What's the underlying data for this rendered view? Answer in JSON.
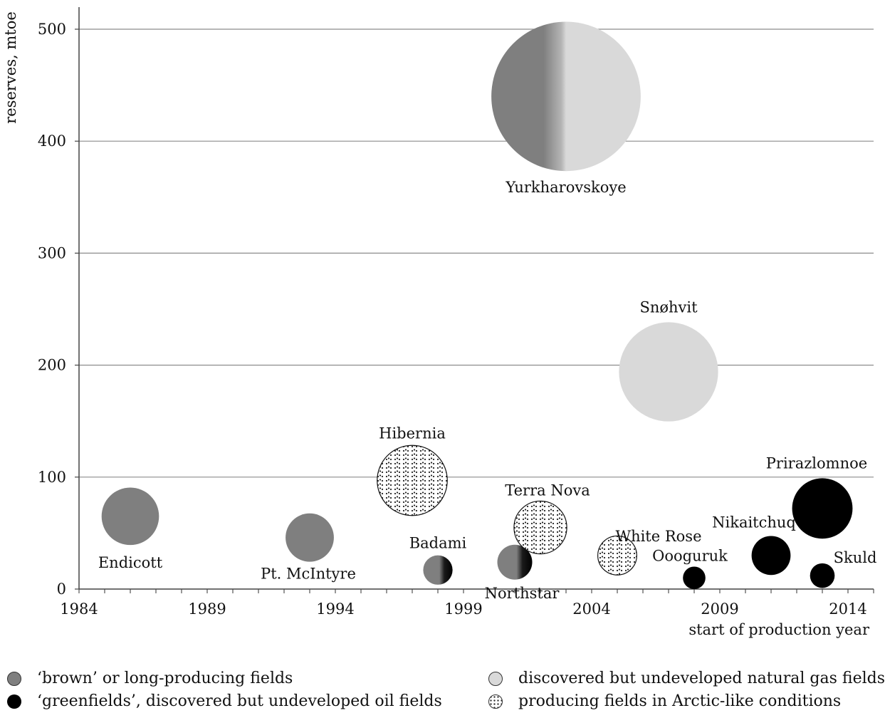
{
  "chart_data": {
    "type": "bubble",
    "ylabel": "reserves, mtoe",
    "xlabel": "start of production year",
    "xlim": [
      1984,
      2015
    ],
    "ylim": [
      0,
      500
    ],
    "xticks": [
      1984,
      1989,
      1994,
      1999,
      2004,
      2009,
      2014
    ],
    "yticks": [
      0,
      100,
      200,
      300,
      400,
      500
    ],
    "grid": "horizontal",
    "colors": {
      "brown": "#7f7f7f",
      "greenfield": "#000000",
      "gas": "#d9d9d9",
      "arctic": "#ffffff"
    },
    "fields": [
      {
        "name": "Endicott",
        "x": 1986,
        "y": 65,
        "category": "brown"
      },
      {
        "name": "Pt. McIntyre",
        "x": 1993,
        "y": 46,
        "category": "brown"
      },
      {
        "name": "Hibernia",
        "x": 1997,
        "y": 97,
        "category": "arctic"
      },
      {
        "name": "Badami",
        "x": 1998,
        "y": 17,
        "category": "brown-greenfield"
      },
      {
        "name": "Northstar",
        "x": 2001,
        "y": 24,
        "category": "brown-greenfield"
      },
      {
        "name": "Terra Nova",
        "x": 2002,
        "y": 55,
        "category": "arctic"
      },
      {
        "name": "Yurkharovskoye",
        "x": 2003,
        "y": 440,
        "category": "brown-gas"
      },
      {
        "name": "White Rose",
        "x": 2005,
        "y": 30,
        "category": "arctic"
      },
      {
        "name": "Snøhvit",
        "x": 2007,
        "y": 194,
        "category": "gas"
      },
      {
        "name": "Oooguruk",
        "x": 2008,
        "y": 10,
        "category": "greenfield"
      },
      {
        "name": "Nikaitchuq",
        "x": 2011,
        "y": 30,
        "category": "greenfield"
      },
      {
        "name": "Prirazlomnoe",
        "x": 2013,
        "y": 72,
        "category": "greenfield"
      },
      {
        "name": "Skuld",
        "x": 2013,
        "y": 12,
        "category": "greenfield"
      }
    ]
  },
  "legend": [
    {
      "key": "brown",
      "label": "‘brown’ or long-producing fields"
    },
    {
      "key": "greenfield",
      "label": "‘greenfields’, discovered but undeveloped oil fields"
    },
    {
      "key": "gas",
      "label": "discovered but undeveloped natural gas fields"
    },
    {
      "key": "arctic",
      "label": "producing fields in Arctic-like conditions"
    }
  ]
}
